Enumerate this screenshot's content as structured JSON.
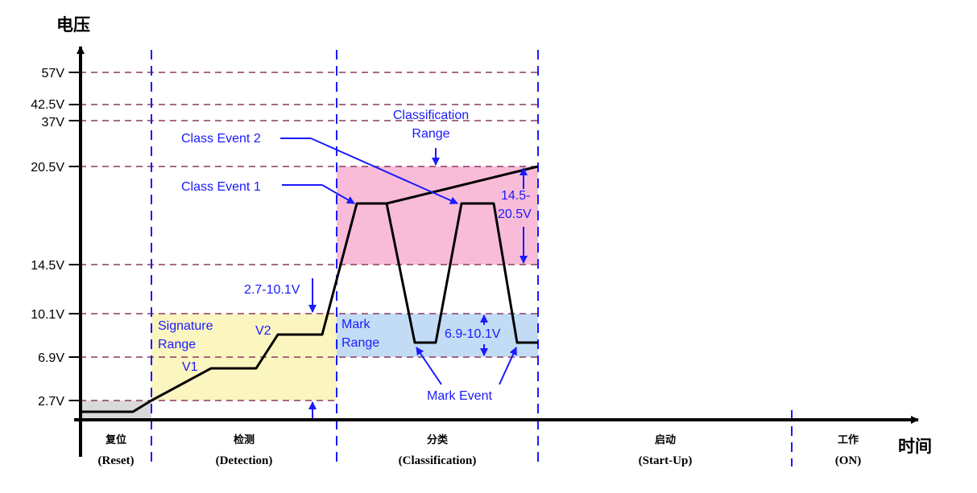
{
  "axes": {
    "y_title": "电压",
    "x_title": "时间"
  },
  "voltage_levels": [
    "57V",
    "42.5V",
    "37V",
    "20.5V",
    "14.5V",
    "10.1V",
    "6.9V",
    "2.7V"
  ],
  "phases": [
    {
      "cn": "复位",
      "en": "(Reset)"
    },
    {
      "cn": "检测",
      "en": "(Detection)"
    },
    {
      "cn": "分类",
      "en": "(Classification)"
    },
    {
      "cn": "启动",
      "en": "(Start-Up)"
    },
    {
      "cn": "工作",
      "en": "(ON)"
    }
  ],
  "annotations": {
    "classification_range": [
      "Classification",
      "Range"
    ],
    "class_event_2": "Class Event 2",
    "class_event_1": "Class Event 1",
    "range_14_20": [
      "14.5-",
      "20.5V"
    ],
    "range_2_10": "2.7-10.1V",
    "signature_range": [
      "Signature",
      "Range"
    ],
    "v1": "V1",
    "v2": "V2",
    "mark_range": [
      "Mark",
      "Range"
    ],
    "range_6_10": "6.9-10.1V",
    "mark_event": "Mark Event"
  },
  "colors": {
    "signature_fill": "#fbf5c0",
    "classification_fill": "#f9bcd8",
    "mark_fill": "#c2dcf5",
    "reset_fill": "#d9d9d9",
    "dashed_level": "#8b3a5e",
    "phase_divider": "#1a1aff",
    "annotation": "#1a1aff"
  }
}
